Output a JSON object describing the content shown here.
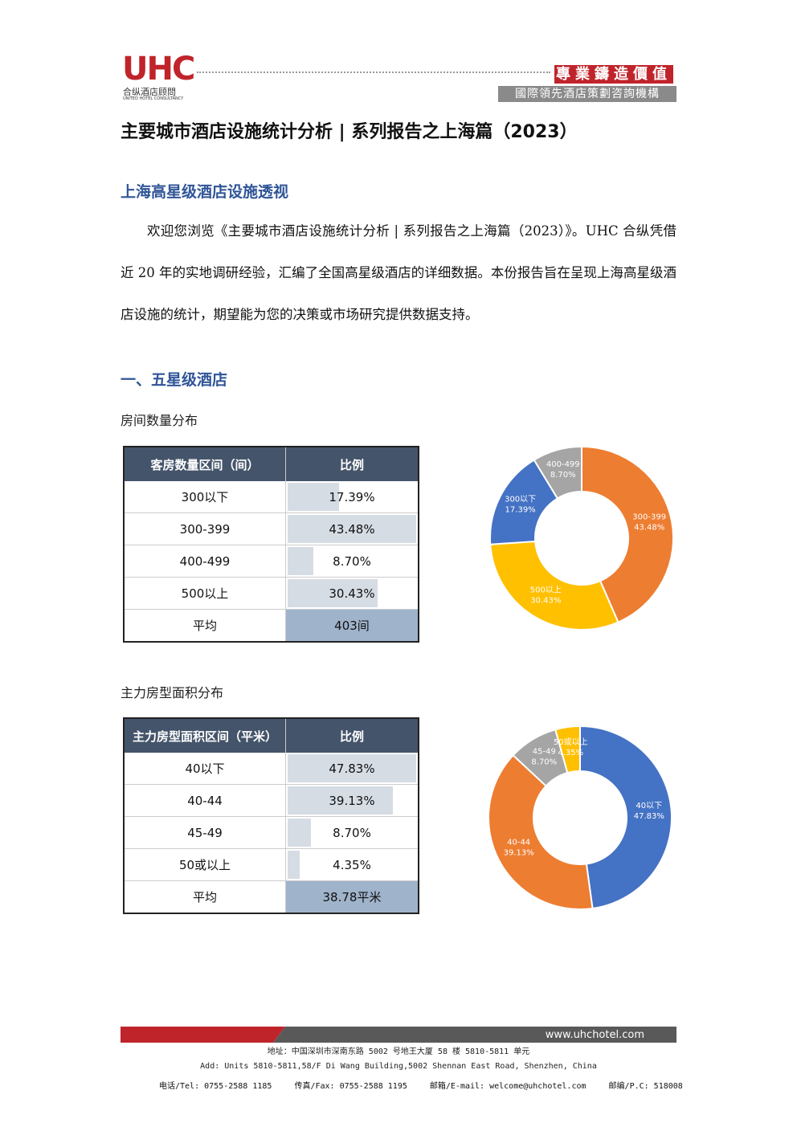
{
  "header": {
    "logo": "UHC",
    "logo_cn": "合纵酒店顾問",
    "logo_en": "UNITED HOTEL CONSULTANCY",
    "slogan": "專業鑄造價值",
    "tagline": "國際領先酒店策劃咨詢機構"
  },
  "title": "主要城市酒店设施统计分析 | 系列报告之上海篇（2023）",
  "section_heading": "上海高星级酒店设施透视",
  "intro": "欢迎您浏览《主要城市酒店设施统计分析 | 系列报告之上海篇（2023）》。UHC 合纵凭借近 20 年的实地调研经验，汇编了全国高星级酒店的详细数据。本份报告旨在呈现上海高星级酒店设施的统计，期望能为您的决策或市场研究提供数据支持。",
  "subsection": "一、五星级酒店",
  "blocks": [
    {
      "caption": "房间数量分布",
      "table": {
        "columns": [
          "客房数量区间（间）",
          "比例"
        ],
        "rows": [
          {
            "label": "300以下",
            "value": 17.39,
            "value_label": "17.39%"
          },
          {
            "label": "300-399",
            "value": 43.48,
            "value_label": "43.48%"
          },
          {
            "label": "400-499",
            "value": 8.7,
            "value_label": "8.70%"
          },
          {
            "label": "500以上",
            "value": 30.43,
            "value_label": "30.43%"
          }
        ],
        "average": {
          "label": "平均",
          "value": "403间"
        }
      },
      "chart_data": {
        "type": "pie",
        "donut": true,
        "categories": [
          "300-399",
          "500以上",
          "300以下",
          "400-499"
        ],
        "values": [
          43.48,
          30.43,
          17.39,
          8.7
        ],
        "value_labels": [
          "43.48%",
          "30.43%",
          "17.39%",
          "8.70%"
        ],
        "colors": [
          "#ed7d31",
          "#ffc000",
          "#4472c4",
          "#a5a5a5"
        ]
      }
    },
    {
      "caption": "主力房型面积分布",
      "table": {
        "columns": [
          "主力房型面积区间（平米）",
          "比例"
        ],
        "rows": [
          {
            "label": "40以下",
            "value": 47.83,
            "value_label": "47.83%"
          },
          {
            "label": "40-44",
            "value": 39.13,
            "value_label": "39.13%"
          },
          {
            "label": "45-49",
            "value": 8.7,
            "value_label": "8.70%"
          },
          {
            "label": "50或以上",
            "value": 4.35,
            "value_label": "4.35%"
          }
        ],
        "average": {
          "label": "平均",
          "value": "38.78平米"
        }
      },
      "chart_data": {
        "type": "pie",
        "donut": true,
        "categories": [
          "40以下",
          "40-44",
          "45-49",
          "50或以上"
        ],
        "values": [
          47.83,
          39.13,
          8.7,
          4.35
        ],
        "value_labels": [
          "47.83%",
          "39.13%",
          "8.70%",
          "4.35%"
        ],
        "colors": [
          "#4472c4",
          "#ed7d31",
          "#a5a5a5",
          "#ffc000"
        ]
      }
    }
  ],
  "footer": {
    "url": "www.uhchotel.com",
    "address_cn": "地址：中国深圳市深南东路 5002 号地王大厦 58 楼 5810-5811 单元",
    "address_en": "Add: Units 5810-5811,58/F Di Wang Building,5002 Shennan East Road, Shenzhen, China",
    "tel": "电话/Tel: 0755-2588 1185",
    "fax": "传真/Fax: 0755-2588 1195",
    "email": "邮箱/E-mail: welcome@uhchotel.com",
    "postcode": "邮编/P.C: 518008"
  }
}
